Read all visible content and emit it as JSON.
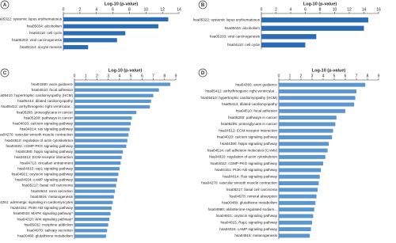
{
  "chart_data": [
    {
      "type": "bar",
      "orientation": "horizontal",
      "panel": "A",
      "x_label": "Log-10 (p-value)",
      "color": "#2b6cb5",
      "xlim": [
        0,
        14
      ],
      "xticks": [
        0,
        2,
        4,
        6,
        8,
        10,
        12,
        14
      ],
      "categories": [
        "hsa05322: systemic lupus erythematosus",
        "hsa05034: alcoholism",
        "hsa04110: cell cycle",
        "hsa05203: viral carcinogenesis",
        "hsa04114: oocyte meiosis"
      ],
      "values": [
        12.7,
        11.5,
        7.5,
        6.5,
        3
      ]
    },
    {
      "type": "bar",
      "orientation": "horizontal",
      "panel": "B",
      "x_label": "Log-10 (p-value)",
      "color": "#2b6cb5",
      "xlim": [
        0,
        16
      ],
      "xticks": [
        0,
        2,
        4,
        6,
        8,
        10,
        12,
        14,
        16
      ],
      "categories": [
        "hsa05322: systemic lupus erythematosus",
        "hsa05034: alcoholism",
        "hsa05203: viral carcinogenesis",
        "hsa04110: cell cycle"
      ],
      "values": [
        14.6,
        14,
        7.5,
        6
      ]
    },
    {
      "type": "bar",
      "orientation": "horizontal",
      "panel": "C",
      "x_label": "Log-10 (p-value)",
      "color": "#5b96cf",
      "xlim": [
        0,
        9
      ],
      "xticks": [
        0,
        1,
        2,
        3,
        4,
        5,
        6,
        7,
        8,
        9
      ],
      "categories": [
        "hsa04360: axon guidance",
        "hsa04510: focal adhesion",
        "hsa05410: hypertrophic cardiomyopathy (HCM)",
        "hsa05414: dilated cardiomyopathy",
        "hsa05412: arrhythmogenic right ventricular...",
        "hsa05205: proteoglycans in cancer",
        "hsa05200: pathways in cancer",
        "hsa04020: calcium signaling pathway",
        "hsa04014: ras signaling pathway",
        "hsa04270: vascular smooth muscle contraction",
        "hsa04810: regulation of actin cytoskeleton",
        "hsa04022: cGMP-PKG signaling pathway",
        "hsa04390: hippo signaling pathway",
        "hsa04512: ECM-receptor interaction",
        "hsa04713: circadian entrainment",
        "hsa04015: rap1 signaling pathway",
        "hsa04921: oxytocin signaling pathway",
        "hsa04024: cAMP signaling pathway",
        "hsa05217: basal cell carcinoma",
        "hsa04924: renin secretion",
        "hsa04916: melanogenesis",
        "hsa04261: adrenergic signaling in cardiomyocytes",
        "hsa04151: PI3K-Akt signaling pathway",
        "hsa04010: MAPK signaling pathway*",
        "hsa04310: Wnt signaling pathway*",
        "hsa05032: morphine addiction",
        "hsa04970: salivary secretion",
        "hsa00480: glutathione metabolism"
      ],
      "values": [
        8.5,
        7.5,
        7,
        6.8,
        6.7,
        5.5,
        5.1,
        5,
        4.9,
        4.8,
        4.7,
        4.6,
        4.3,
        4.2,
        4.1,
        4,
        3.9,
        3.8,
        3.7,
        3.6,
        3.5,
        3.4,
        3.3,
        3.2,
        3.1,
        3,
        2.9,
        2.8
      ]
    },
    {
      "type": "bar",
      "orientation": "horizontal",
      "panel": "D",
      "x_label": "Log-10 (p-value)",
      "color": "#5b96cf",
      "xlim": [
        0,
        9
      ],
      "xticks": [
        0,
        1,
        2,
        3,
        4,
        5,
        6,
        7,
        8,
        9
      ],
      "categories": [
        "hsa04360: axon guidance",
        "hsa05412: arrhythmogenic right ventricular...",
        "hsa05410: hypertrophic cardiomyopathy (HCM)",
        "hsa05414: dilated cardiomyopathy",
        "hsa04510: focal adhesion",
        "hsa05200: pathways in cancer",
        "hsa05205: proteoglycans in cancer",
        "hsa04512: ECM-receptor interaction",
        "hsa04020: calcium signaling pathway",
        "hsa04390: hippo signaling pathway",
        "hsa04514: cell adhesion molecules (CAMs)",
        "hsa04810: regulation of actin cytoskeleton",
        "hsa04022: cGMP-PKG signaling pathway",
        "hsa04151: PI3K-Akt signaling pathway",
        "hsa04014: Ras signaling pathway",
        "hsa04270: vascular smooth muscle contraction",
        "hsa05217: basal cell carcinoma",
        "hsa04978: mineral absorption",
        "hsa00480: glutathione metabolism",
        "hsa04960: aldosterone-regulated sodium...",
        "hsa04921: oxytocin signaling pathway",
        "hsa04015: Rap1 signaling pathway",
        "hsa04024: cAMP signaling pathway",
        "hsa04916: melanogenesis"
      ],
      "values": [
        7.8,
        7,
        6.9,
        6.8,
        6,
        5.2,
        5.1,
        4.9,
        4.8,
        4.5,
        4.4,
        4.2,
        4,
        3.8,
        3.7,
        3.6,
        3.5,
        3.4,
        3.3,
        3.2,
        3.1,
        3,
        2.9,
        2.8
      ]
    }
  ]
}
